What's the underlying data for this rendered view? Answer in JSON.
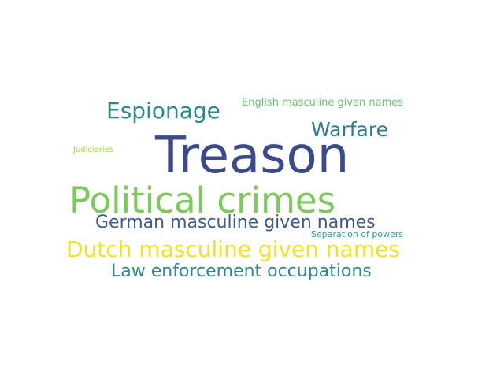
{
  "wordcloud": {
    "words": [
      {
        "text": "Treason",
        "color": "#3b4a8a"
      },
      {
        "text": "Political crimes",
        "color": "#7acb58"
      },
      {
        "text": "Dutch masculine given names",
        "color": "#f0e227"
      },
      {
        "text": "German masculine given names",
        "color": "#3c5a8e"
      },
      {
        "text": "Law enforcement occupations",
        "color": "#2a8a8c"
      },
      {
        "text": "Espionage",
        "color": "#2b8a8a"
      },
      {
        "text": "Warfare",
        "color": "#2c7e8e"
      },
      {
        "text": "English masculine given names",
        "color": "#62c86a"
      },
      {
        "text": "Separation of powers",
        "color": "#26a39b"
      },
      {
        "text": "Judiciaries",
        "color": "#9bd845"
      }
    ]
  }
}
